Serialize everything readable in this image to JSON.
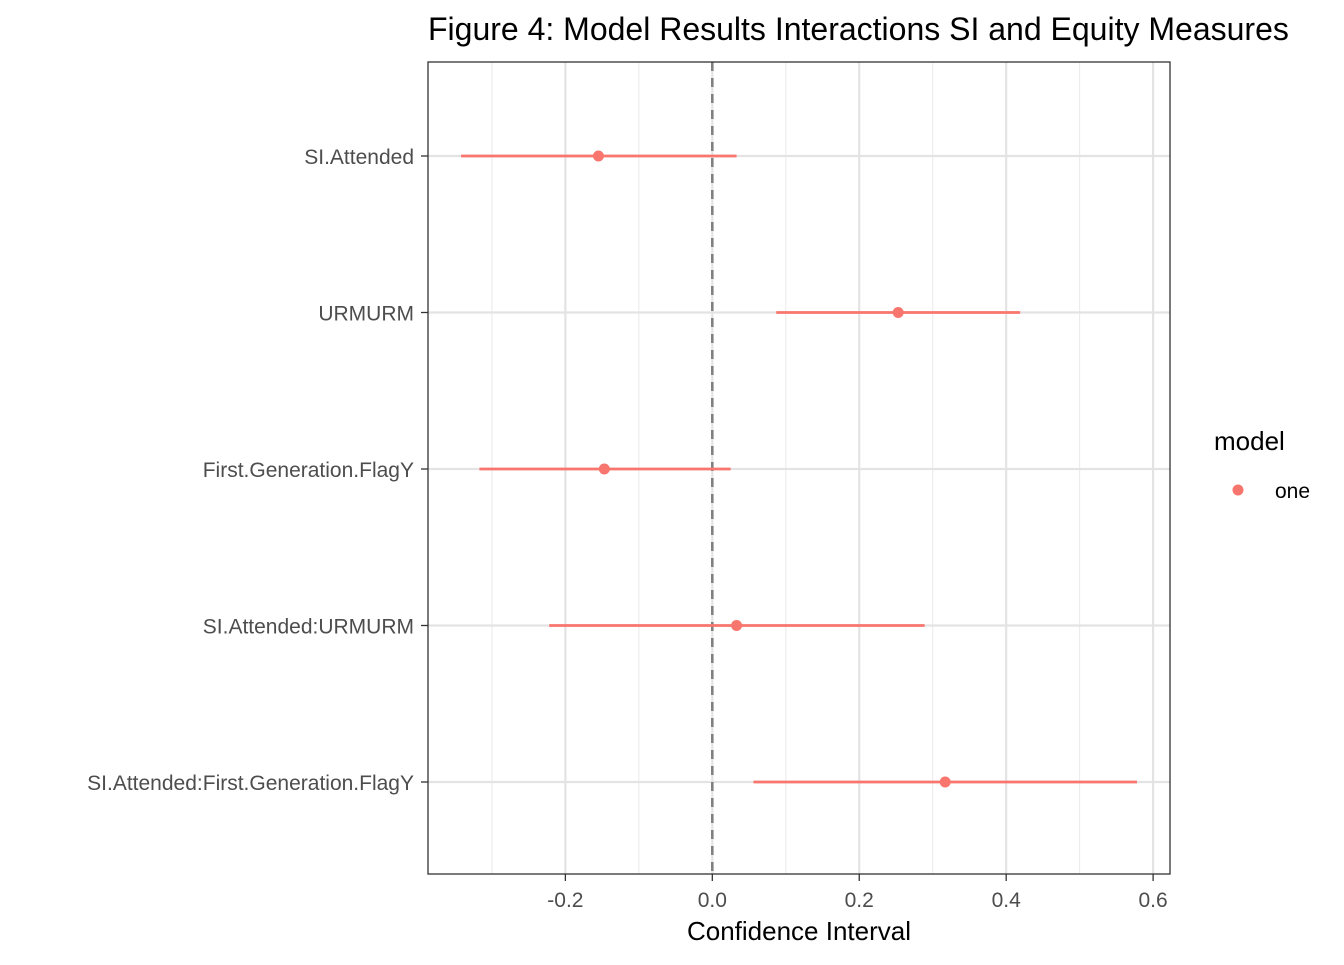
{
  "chart_data": {
    "type": "scatter",
    "title": "Figure 4: Model Results Interactions SI and Equity Measures",
    "xlabel": "Confidence Interval",
    "ylabel": "",
    "xlim": [
      -0.387,
      0.623
    ],
    "x_ticks": [
      -0.2,
      0.0,
      0.2,
      0.4,
      0.6
    ],
    "x_tick_labels": [
      "-0.2",
      "0.0",
      "0.2",
      "0.4",
      "0.6"
    ],
    "x_minor_ticks": [
      -0.3,
      -0.1,
      0.1,
      0.3,
      0.5
    ],
    "categories": [
      "SI.Attended",
      "URMURM",
      "First.Generation.FlagY",
      "SI.Attended:URMURM",
      "SI.Attended:First.Generation.FlagY"
    ],
    "reference_line": {
      "x": 0.0,
      "style": "dashed",
      "color": "#808080"
    },
    "grid": true,
    "series": [
      {
        "name": "one",
        "color": "#F8766D",
        "estimates": [
          -0.155,
          0.253,
          -0.147,
          0.033,
          0.317
        ],
        "lower": [
          -0.342,
          0.087,
          -0.317,
          -0.222,
          0.056
        ],
        "upper": [
          0.033,
          0.419,
          0.025,
          0.289,
          0.578
        ]
      }
    ],
    "legend": {
      "title": "model",
      "position": "right"
    }
  }
}
